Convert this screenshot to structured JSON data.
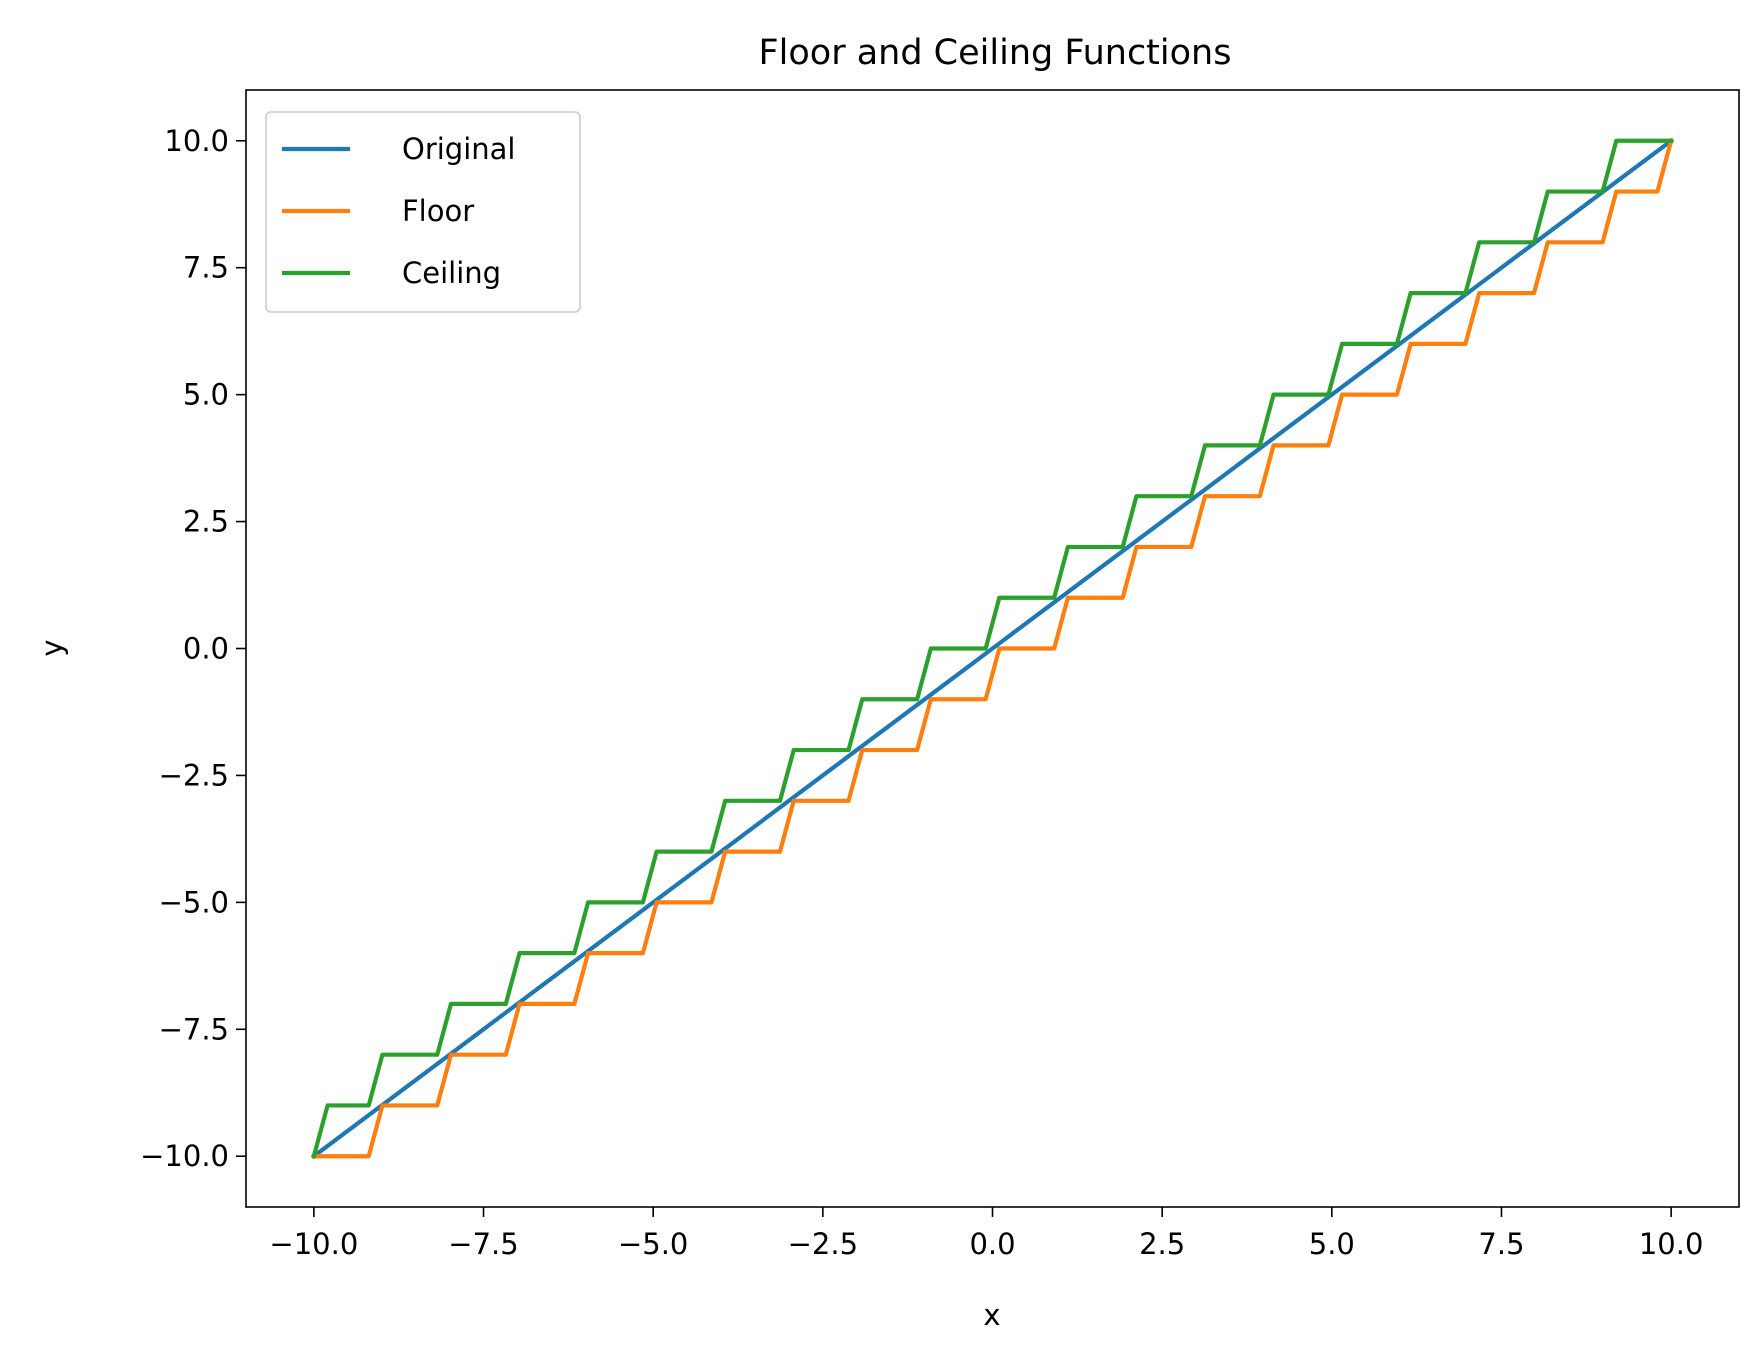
{
  "chart_data": {
    "type": "line",
    "title": "Floor and Ceiling Functions",
    "xlabel": "x",
    "ylabel": "y",
    "xlim": [
      -11.0,
      11.0
    ],
    "ylim": [
      -11.0,
      11.0
    ],
    "x_ticks": [
      -10.0,
      -7.5,
      -5.0,
      -2.5,
      0.0,
      2.5,
      5.0,
      7.5,
      10.0
    ],
    "x_tick_labels": [
      "−10.0",
      "−7.5",
      "−5.0",
      "−2.5",
      "0.0",
      "2.5",
      "5.0",
      "7.5",
      "10.0"
    ],
    "y_ticks": [
      -10.0,
      -7.5,
      -5.0,
      -2.5,
      0.0,
      2.5,
      5.0,
      7.5,
      10.0
    ],
    "y_tick_labels": [
      "−10.0",
      "−7.5",
      "−5.0",
      "−2.5",
      "0.0",
      "2.5",
      "5.0",
      "7.5",
      "10.0"
    ],
    "grid": false,
    "legend_position": "top-left",
    "series": [
      {
        "name": "Original",
        "color": "#1f77b4",
        "function": "identity",
        "x_range": [
          -10,
          10
        ],
        "samples": 100
      },
      {
        "name": "Floor",
        "color": "#ff7f0e",
        "function": "floor",
        "x_range": [
          -10,
          10
        ],
        "samples": 100
      },
      {
        "name": "Ceiling",
        "color": "#2ca02c",
        "function": "ceil",
        "x_range": [
          -10,
          10
        ],
        "samples": 100
      }
    ]
  }
}
